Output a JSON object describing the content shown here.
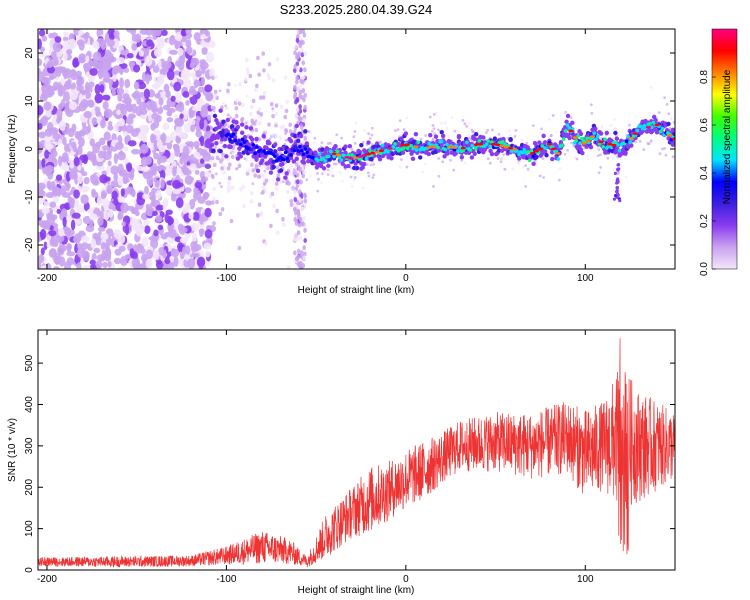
{
  "title": "S233.2025.280.04.39.G24",
  "chart_data": [
    {
      "type": "heatmap",
      "xlabel": "Height of straight line (km)",
      "ylabel": "Frequency (Hz)",
      "xlim": [
        -205,
        150
      ],
      "ylim": [
        -25,
        25
      ],
      "xticks": [
        -200,
        -100,
        0,
        100
      ],
      "yticks": [
        -20,
        -10,
        0,
        10,
        20
      ],
      "colorbar": {
        "label": "Normalized spectral amplitude",
        "range": [
          0,
          1
        ],
        "ticks": [
          0.0,
          0.2,
          0.4,
          0.6,
          0.8
        ],
        "tick_labels": [
          "0.0",
          "0.2",
          "0.4",
          "0.6",
          "0.8"
        ],
        "colors": [
          "#f3e6fb",
          "#c9a3ef",
          "#8a3cf0",
          "#3a1fe0",
          "#0000ff",
          "#00e5ff",
          "#00ff80",
          "#40ff00",
          "#ffff00",
          "#ff8000",
          "#ff0000",
          "#ff0080"
        ]
      },
      "ridge_path": [
        {
          "x": -105,
          "y": 4
        },
        {
          "x": -100,
          "y": 3
        },
        {
          "x": -90,
          "y": 1
        },
        {
          "x": -80,
          "y": -1
        },
        {
          "x": -70,
          "y": -2
        },
        {
          "x": -60,
          "y": 0
        },
        {
          "x": -55,
          "y": -1
        },
        {
          "x": -50,
          "y": -2
        },
        {
          "x": -45,
          "y": -2
        },
        {
          "x": -40,
          "y": -1
        },
        {
          "x": -30,
          "y": -2
        },
        {
          "x": -20,
          "y": -1
        },
        {
          "x": -10,
          "y": 0
        },
        {
          "x": 0,
          "y": 1
        },
        {
          "x": 10,
          "y": 0
        },
        {
          "x": 20,
          "y": 1
        },
        {
          "x": 30,
          "y": 0
        },
        {
          "x": 40,
          "y": 1
        },
        {
          "x": 50,
          "y": 1
        },
        {
          "x": 60,
          "y": 0
        },
        {
          "x": 70,
          "y": -1
        },
        {
          "x": 80,
          "y": 1
        },
        {
          "x": 85,
          "y": -1
        },
        {
          "x": 90,
          "y": 5
        },
        {
          "x": 95,
          "y": 2
        },
        {
          "x": 100,
          "y": 1
        },
        {
          "x": 105,
          "y": 3
        },
        {
          "x": 110,
          "y": 1
        },
        {
          "x": 115,
          "y": 1
        },
        {
          "x": 120,
          "y": 0
        },
        {
          "x": 130,
          "y": 4
        },
        {
          "x": 140,
          "y": 5
        },
        {
          "x": 150,
          "y": 2
        }
      ]
    },
    {
      "type": "line",
      "xlabel": "Height of straight line (km)",
      "ylabel": "SNR (10 * v/v)",
      "xlim": [
        -205,
        150
      ],
      "ylim": [
        0,
        580
      ],
      "xticks": [
        -200,
        -100,
        0,
        100
      ],
      "yticks": [
        0,
        100,
        200,
        300,
        400,
        500
      ],
      "series_color": "#ee3333",
      "envelope": [
        {
          "x": -205,
          "mean": 20,
          "amp": 12
        },
        {
          "x": -160,
          "mean": 20,
          "amp": 15
        },
        {
          "x": -120,
          "mean": 22,
          "amp": 15
        },
        {
          "x": -100,
          "mean": 35,
          "amp": 25
        },
        {
          "x": -80,
          "mean": 55,
          "amp": 45
        },
        {
          "x": -65,
          "mean": 45,
          "amp": 35
        },
        {
          "x": -55,
          "mean": 20,
          "amp": 15
        },
        {
          "x": -45,
          "mean": 80,
          "amp": 60
        },
        {
          "x": -30,
          "mean": 140,
          "amp": 70
        },
        {
          "x": -20,
          "mean": 170,
          "amp": 90
        },
        {
          "x": -10,
          "mean": 190,
          "amp": 80
        },
        {
          "x": 0,
          "mean": 220,
          "amp": 80
        },
        {
          "x": 10,
          "mean": 240,
          "amp": 80
        },
        {
          "x": 20,
          "mean": 270,
          "amp": 70
        },
        {
          "x": 30,
          "mean": 300,
          "amp": 70
        },
        {
          "x": 50,
          "mean": 310,
          "amp": 80
        },
        {
          "x": 70,
          "mean": 300,
          "amp": 90
        },
        {
          "x": 90,
          "mean": 320,
          "amp": 100
        },
        {
          "x": 100,
          "mean": 280,
          "amp": 120
        },
        {
          "x": 110,
          "mean": 300,
          "amp": 120
        },
        {
          "x": 120,
          "mean": 320,
          "amp": 200
        },
        {
          "x": 130,
          "mean": 300,
          "amp": 150
        },
        {
          "x": 150,
          "mean": 300,
          "amp": 90
        }
      ]
    }
  ]
}
